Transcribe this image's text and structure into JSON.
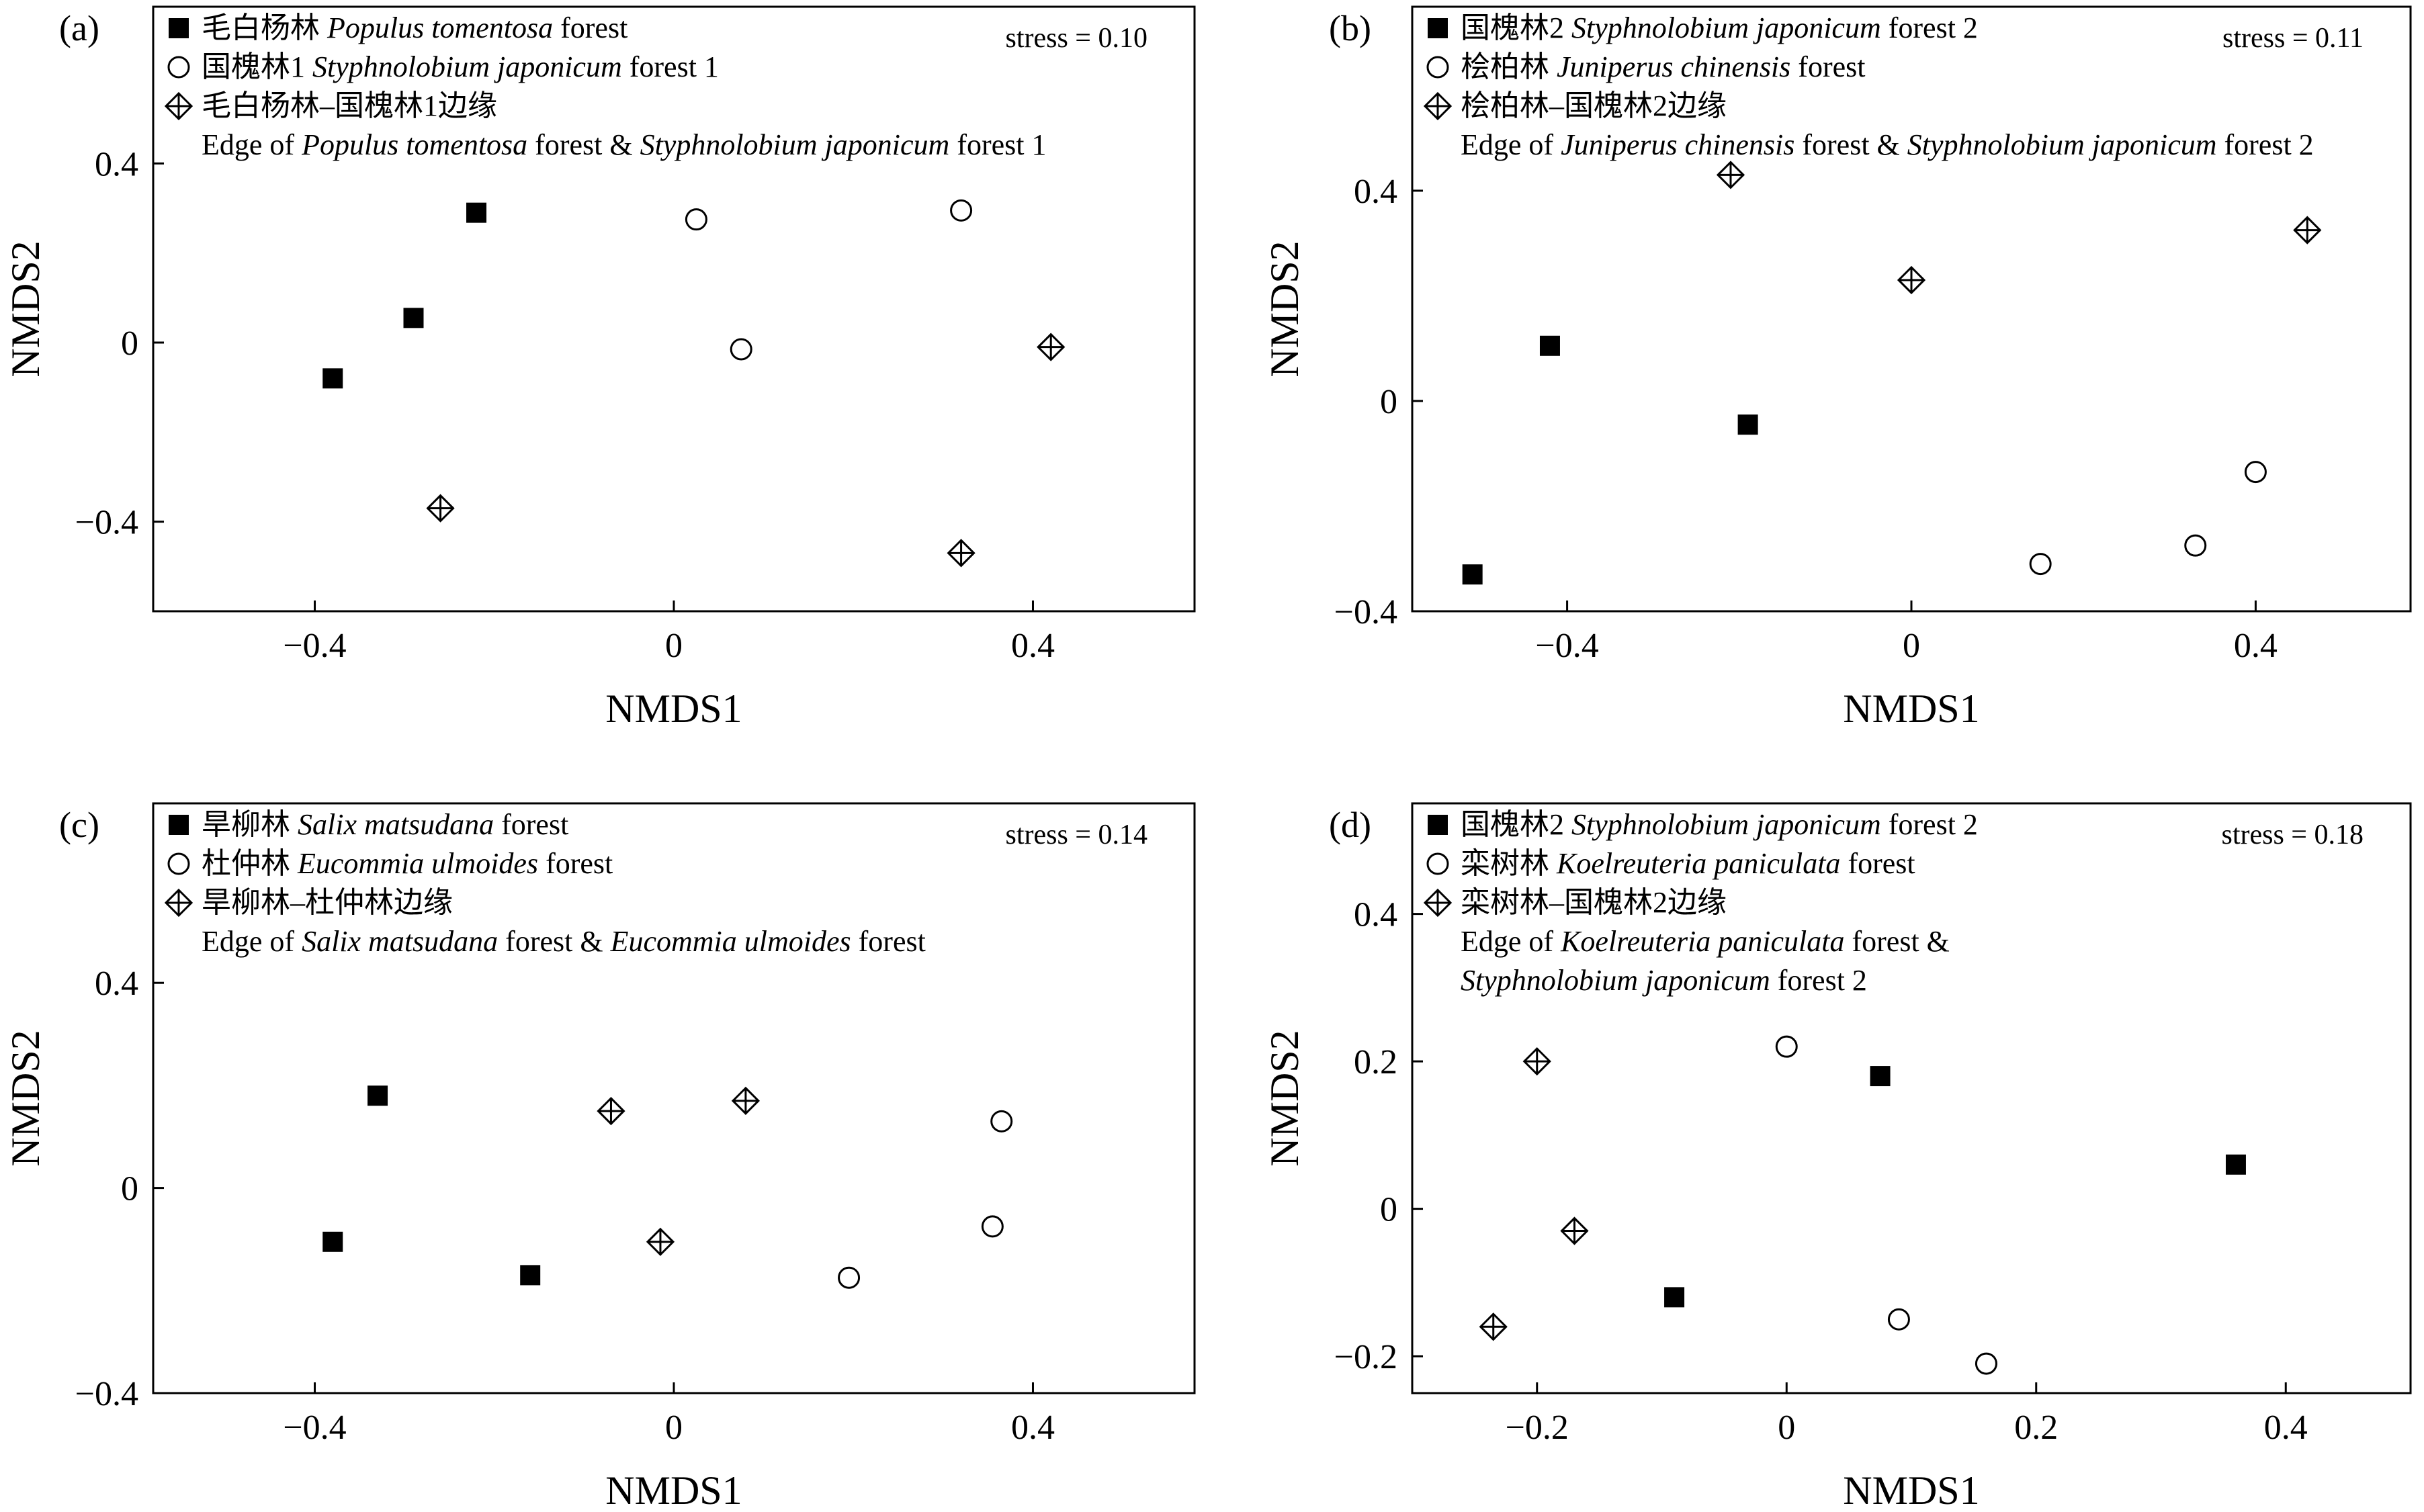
{
  "chart_data": [
    {
      "type": "scatter",
      "panel": "(a)",
      "stress": "stress = 0.10",
      "xlabel": "NMDS1",
      "ylabel": "NMDS2",
      "xlim": [
        -0.58,
        0.58
      ],
      "ylim": [
        -0.6,
        0.75
      ],
      "xticks": [
        {
          "v": -0.4,
          "t": "−0.4"
        },
        {
          "v": 0,
          "t": "0"
        },
        {
          "v": 0.4,
          "t": "0.4"
        }
      ],
      "yticks": [
        {
          "v": -0.4,
          "t": "−0.4"
        },
        {
          "v": 0,
          "t": "0"
        },
        {
          "v": 0.4,
          "t": "0.4"
        }
      ],
      "series": [
        {
          "name": "毛白杨林 Populus tomentosa forest",
          "marker": "square",
          "legend_parts": [
            {
              "t": "毛白杨林 "
            },
            {
              "t": "Populus tomentosa",
              "i": true
            },
            {
              "t": " forest"
            }
          ],
          "points": [
            [
              -0.22,
              0.29
            ],
            [
              -0.29,
              0.055
            ],
            [
              -0.38,
              -0.08
            ]
          ]
        },
        {
          "name": "国槐林1 Styphnolobium japonicum forest 1",
          "marker": "circle",
          "legend_parts": [
            {
              "t": "国槐林1 "
            },
            {
              "t": "Styphnolobium japonicum",
              "i": true
            },
            {
              "t": " forest 1"
            }
          ],
          "points": [
            [
              0.025,
              0.275
            ],
            [
              0.075,
              -0.015
            ],
            [
              0.32,
              0.295
            ]
          ]
        },
        {
          "name": "毛白杨林–国槐林1边缘",
          "marker": "diamond",
          "legend_parts": [
            {
              "t": "毛白杨林–国槐林1边缘"
            }
          ],
          "legend_line2": [
            {
              "t": "Edge of "
            },
            {
              "t": "Populus tomentosa",
              "i": true
            },
            {
              "t": " forest & "
            },
            {
              "t": "Styphnolobium japonicum",
              "i": true
            },
            {
              "t": " forest 1"
            }
          ],
          "points": [
            [
              -0.26,
              -0.37
            ],
            [
              0.32,
              -0.47
            ],
            [
              0.42,
              -0.01
            ]
          ]
        }
      ]
    },
    {
      "type": "scatter",
      "panel": "(b)",
      "stress": "stress = 0.11",
      "xlabel": "NMDS1",
      "ylabel": "NMDS2",
      "xlim": [
        -0.58,
        0.58
      ],
      "ylim": [
        -0.4,
        0.75
      ],
      "xticks": [
        {
          "v": -0.4,
          "t": "−0.4"
        },
        {
          "v": 0,
          "t": "0"
        },
        {
          "v": 0.4,
          "t": "0.4"
        }
      ],
      "yticks": [
        {
          "v": -0.4,
          "t": "−0.4"
        },
        {
          "v": 0,
          "t": "0"
        },
        {
          "v": 0.4,
          "t": "0.4"
        }
      ],
      "series": [
        {
          "name": "国槐林2 Styphnolobium japonicum forest 2",
          "marker": "square",
          "legend_parts": [
            {
              "t": "国槐林2 "
            },
            {
              "t": "Styphnolobium japonicum",
              "i": true
            },
            {
              "t": " forest 2"
            }
          ],
          "points": [
            [
              -0.42,
              0.105
            ],
            [
              -0.19,
              -0.045
            ],
            [
              -0.51,
              -0.33
            ]
          ]
        },
        {
          "name": "桧柏林 Juniperus chinensis forest",
          "marker": "circle",
          "legend_parts": [
            {
              "t": "桧柏林 "
            },
            {
              "t": "Juniperus chinensis",
              "i": true
            },
            {
              "t": " forest"
            }
          ],
          "points": [
            [
              0.15,
              -0.31
            ],
            [
              0.33,
              -0.275
            ],
            [
              0.4,
              -0.135
            ]
          ]
        },
        {
          "name": "桧柏林–国槐林2边缘",
          "marker": "diamond",
          "legend_parts": [
            {
              "t": "桧柏林–国槐林2边缘"
            }
          ],
          "legend_line2": [
            {
              "t": "Edge of "
            },
            {
              "t": "Juniperus chinensis",
              "i": true
            },
            {
              "t": " forest & "
            },
            {
              "t": "Styphnolobium japonicum",
              "i": true
            },
            {
              "t": " forest 2"
            }
          ],
          "points": [
            [
              -0.21,
              0.43
            ],
            [
              0.0,
              0.23
            ],
            [
              0.46,
              0.325
            ]
          ]
        }
      ]
    },
    {
      "type": "scatter",
      "panel": "(c)",
      "stress": "stress = 0.14",
      "xlabel": "NMDS1",
      "ylabel": "NMDS2",
      "xlim": [
        -0.58,
        0.58
      ],
      "ylim": [
        -0.4,
        0.75
      ],
      "xticks": [
        {
          "v": -0.4,
          "t": "−0.4"
        },
        {
          "v": 0,
          "t": "0"
        },
        {
          "v": 0.4,
          "t": "0.4"
        }
      ],
      "yticks": [
        {
          "v": -0.4,
          "t": "−0.4"
        },
        {
          "v": 0,
          "t": "0"
        },
        {
          "v": 0.4,
          "t": "0.4"
        }
      ],
      "series": [
        {
          "name": "旱柳林 Salix matsudana forest",
          "marker": "square",
          "legend_parts": [
            {
              "t": "旱柳林 "
            },
            {
              "t": "Salix matsudana",
              "i": true
            },
            {
              "t": " forest"
            }
          ],
          "points": [
            [
              -0.33,
              0.18
            ],
            [
              -0.38,
              -0.105
            ],
            [
              -0.16,
              -0.17
            ]
          ]
        },
        {
          "name": "杜仲林 Eucommia ulmoides forest",
          "marker": "circle",
          "legend_parts": [
            {
              "t": "杜仲林 "
            },
            {
              "t": "Eucommia ulmoides",
              "i": true
            },
            {
              "t": " forest"
            }
          ],
          "points": [
            [
              0.195,
              -0.175
            ],
            [
              0.355,
              -0.075
            ],
            [
              0.365,
              0.13
            ]
          ]
        },
        {
          "name": "旱柳林–杜仲林边缘",
          "marker": "diamond",
          "legend_parts": [
            {
              "t": "旱柳林–杜仲林边缘"
            }
          ],
          "legend_line2": [
            {
              "t": "Edge of "
            },
            {
              "t": "Salix matsudana",
              "i": true
            },
            {
              "t": " forest & "
            },
            {
              "t": "Eucommia ulmoides",
              "i": true
            },
            {
              "t": " forest"
            }
          ],
          "points": [
            [
              -0.07,
              0.15
            ],
            [
              0.08,
              0.17
            ],
            [
              -0.015,
              -0.105
            ]
          ]
        }
      ]
    },
    {
      "type": "scatter",
      "panel": "(d)",
      "stress": "stress = 0.18",
      "xlabel": "NMDS1",
      "ylabel": "NMDS2",
      "xlim": [
        -0.3,
        0.5
      ],
      "ylim": [
        -0.25,
        0.55
      ],
      "xticks": [
        {
          "v": -0.2,
          "t": "−0.2"
        },
        {
          "v": 0,
          "t": "0"
        },
        {
          "v": 0.2,
          "t": "0.2"
        },
        {
          "v": 0.4,
          "t": "0.4"
        }
      ],
      "yticks": [
        {
          "v": -0.2,
          "t": "−0.2"
        },
        {
          "v": 0,
          "t": "0"
        },
        {
          "v": 0.2,
          "t": "0.2"
        },
        {
          "v": 0.4,
          "t": "0.4"
        }
      ],
      "series": [
        {
          "name": "国槐林2 Styphnolobium japonicum forest 2",
          "marker": "square",
          "legend_parts": [
            {
              "t": "国槐林2 "
            },
            {
              "t": "Styphnolobium japonicum",
              "i": true
            },
            {
              "t": " forest 2"
            }
          ],
          "points": [
            [
              0.075,
              0.18
            ],
            [
              -0.09,
              -0.12
            ],
            [
              0.36,
              0.06
            ]
          ]
        },
        {
          "name": "栾树林 Koelreuteria paniculata forest",
          "marker": "circle",
          "legend_parts": [
            {
              "t": "栾树林 "
            },
            {
              "t": "Koelreuteria paniculata",
              "i": true
            },
            {
              "t": " forest"
            }
          ],
          "points": [
            [
              0.0,
              0.22
            ],
            [
              0.09,
              -0.15
            ],
            [
              0.16,
              -0.21
            ]
          ]
        },
        {
          "name": "栾树林–国槐林2边缘",
          "marker": "diamond",
          "legend_parts": [
            {
              "t": "栾树林–国槐林2边缘"
            }
          ],
          "legend_line2": [
            {
              "t": "Edge of "
            },
            {
              "t": "Koelreuteria paniculata",
              "i": true
            },
            {
              "t": " forest &"
            }
          ],
          "legend_line3": [
            {
              "t": "Styphnolobium japonicum",
              "i": true
            },
            {
              "t": " forest 2"
            }
          ],
          "points": [
            [
              -0.2,
              0.2
            ],
            [
              -0.17,
              -0.03
            ],
            [
              -0.235,
              -0.16
            ]
          ]
        }
      ]
    }
  ]
}
